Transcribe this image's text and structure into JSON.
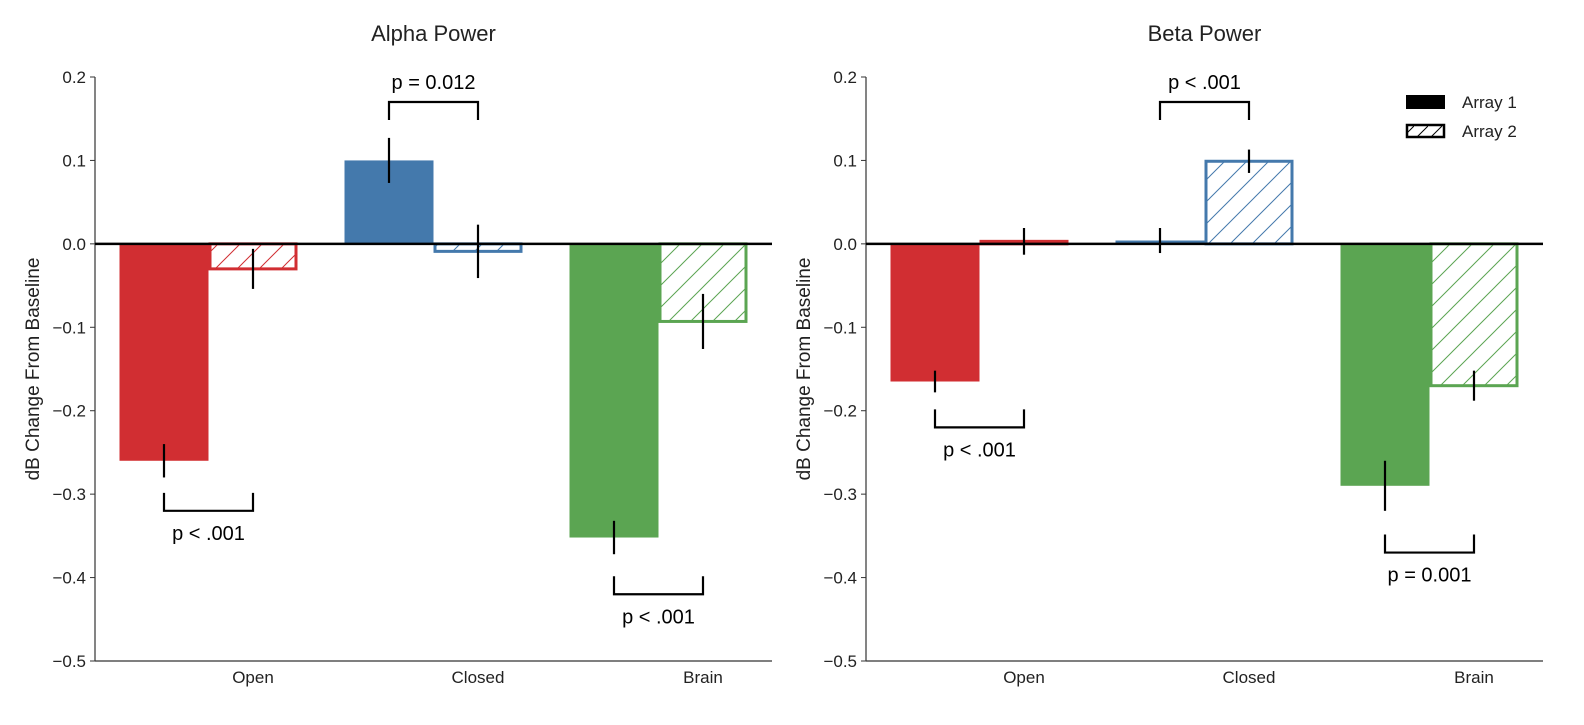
{
  "colors": {
    "open": "#d12e32",
    "closed": "#4479ac",
    "brain": "#5ba552"
  },
  "legend": {
    "items": [
      {
        "label": "Array 1",
        "style": "solid"
      },
      {
        "label": "Array 2",
        "style": "hatched"
      }
    ],
    "placement": "top-right"
  },
  "chart_data": [
    {
      "type": "bar",
      "title": "Alpha Power",
      "ylabel": "dB Change From Baseline",
      "xlabel": "",
      "ylim": [
        -0.5,
        0.2
      ],
      "yticks": [
        "−0.5",
        "−0.4",
        "−0.3",
        "−0.2",
        "−0.1",
        "0.0",
        "0.1",
        "0.2"
      ],
      "ytick_values": [
        -0.5,
        -0.4,
        -0.3,
        -0.2,
        -0.1,
        0.0,
        0.1,
        0.2
      ],
      "categories": [
        "Open",
        "Closed",
        "Brain"
      ],
      "series": [
        {
          "name": "Array 1",
          "values": [
            -0.26,
            0.1,
            -0.352
          ],
          "errors": [
            0.02,
            0.027,
            0.02
          ]
        },
        {
          "name": "Array 2",
          "values": [
            -0.03,
            -0.009,
            -0.093
          ],
          "errors": [
            0.024,
            0.032,
            0.033
          ]
        }
      ],
      "annotations": [
        {
          "category": "Open",
          "text": "p < .001",
          "bracket_y": -0.32,
          "side": "below"
        },
        {
          "category": "Closed",
          "text": "p = 0.012",
          "bracket_y": 0.17,
          "side": "above"
        },
        {
          "category": "Brain",
          "text": "p < .001",
          "bracket_y": -0.42,
          "side": "below"
        }
      ]
    },
    {
      "type": "bar",
      "title": "Beta Power",
      "ylabel": "dB Change From Baseline",
      "xlabel": "",
      "ylim": [
        -0.5,
        0.2
      ],
      "yticks": [
        "−0.5",
        "−0.4",
        "−0.3",
        "−0.2",
        "−0.1",
        "0.0",
        "0.1",
        "0.2"
      ],
      "ytick_values": [
        -0.5,
        -0.4,
        -0.3,
        -0.2,
        -0.1,
        0.0,
        0.1,
        0.2
      ],
      "categories": [
        "Open",
        "Closed",
        "Brain"
      ],
      "series": [
        {
          "name": "Array 1",
          "values": [
            -0.165,
            0.004,
            -0.29
          ],
          "errors": [
            0.013,
            0.015,
            0.03
          ]
        },
        {
          "name": "Array 2",
          "values": [
            0.003,
            0.099,
            -0.17
          ],
          "errors": [
            0.016,
            0.014,
            0.018
          ]
        }
      ],
      "annotations": [
        {
          "category": "Open",
          "text": "p < .001",
          "bracket_y": -0.22,
          "side": "below"
        },
        {
          "category": "Closed",
          "text": "p < .001",
          "bracket_y": 0.17,
          "side": "above"
        },
        {
          "category": "Brain",
          "text": "p = 0.001",
          "bracket_y": -0.37,
          "side": "below"
        }
      ]
    }
  ]
}
